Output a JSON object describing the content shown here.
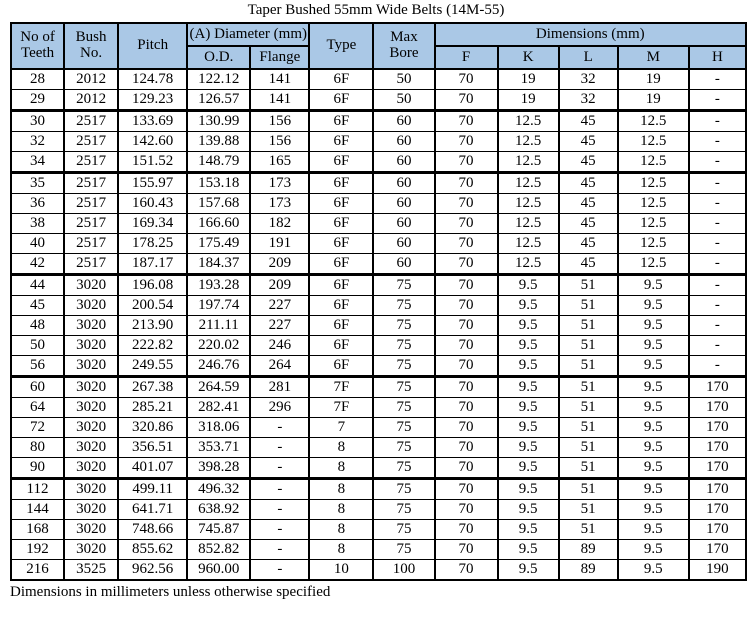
{
  "title": "Taper Bushed 55mm Wide Belts (14M-55)",
  "footer_note": "Dimensions in millimeters unless otherwise specified",
  "colors": {
    "header_bg": "#aac8e6",
    "border": "#000000",
    "text": "#000000"
  },
  "header": {
    "teeth": "No of Teeth",
    "bush": "Bush No.",
    "pitch": "Pitch",
    "diameter_group": "(A) Diameter (mm)",
    "od": "O.D.",
    "flange": "Flange",
    "type": "Type",
    "max_bore": "Max Bore",
    "dimensions_group": "Dimensions (mm)",
    "f": "F",
    "k": "K",
    "l": "L",
    "m": "M",
    "h": "H"
  },
  "columns": [
    "No of Teeth",
    "Bush No.",
    "Pitch",
    "O.D.",
    "Flange",
    "Type",
    "Max Bore",
    "F",
    "K",
    "L",
    "M",
    "H"
  ],
  "rows": [
    [
      "28",
      "2012",
      "124.78",
      "122.12",
      "141",
      "6F",
      "50",
      "70",
      "19",
      "32",
      "19",
      "-"
    ],
    [
      "29",
      "2012",
      "129.23",
      "126.57",
      "141",
      "6F",
      "50",
      "70",
      "19",
      "32",
      "19",
      "-"
    ],
    [
      "30",
      "2517",
      "133.69",
      "130.99",
      "156",
      "6F",
      "60",
      "70",
      "12.5",
      "45",
      "12.5",
      "-"
    ],
    [
      "32",
      "2517",
      "142.60",
      "139.88",
      "156",
      "6F",
      "60",
      "70",
      "12.5",
      "45",
      "12.5",
      "-"
    ],
    [
      "34",
      "2517",
      "151.52",
      "148.79",
      "165",
      "6F",
      "60",
      "70",
      "12.5",
      "45",
      "12.5",
      "-"
    ],
    [
      "35",
      "2517",
      "155.97",
      "153.18",
      "173",
      "6F",
      "60",
      "70",
      "12.5",
      "45",
      "12.5",
      "-"
    ],
    [
      "36",
      "2517",
      "160.43",
      "157.68",
      "173",
      "6F",
      "60",
      "70",
      "12.5",
      "45",
      "12.5",
      "-"
    ],
    [
      "38",
      "2517",
      "169.34",
      "166.60",
      "182",
      "6F",
      "60",
      "70",
      "12.5",
      "45",
      "12.5",
      "-"
    ],
    [
      "40",
      "2517",
      "178.25",
      "175.49",
      "191",
      "6F",
      "60",
      "70",
      "12.5",
      "45",
      "12.5",
      "-"
    ],
    [
      "42",
      "2517",
      "187.17",
      "184.37",
      "209",
      "6F",
      "60",
      "70",
      "12.5",
      "45",
      "12.5",
      "-"
    ],
    [
      "44",
      "3020",
      "196.08",
      "193.28",
      "209",
      "6F",
      "75",
      "70",
      "9.5",
      "51",
      "9.5",
      "-"
    ],
    [
      "45",
      "3020",
      "200.54",
      "197.74",
      "227",
      "6F",
      "75",
      "70",
      "9.5",
      "51",
      "9.5",
      "-"
    ],
    [
      "48",
      "3020",
      "213.90",
      "211.11",
      "227",
      "6F",
      "75",
      "70",
      "9.5",
      "51",
      "9.5",
      "-"
    ],
    [
      "50",
      "3020",
      "222.82",
      "220.02",
      "246",
      "6F",
      "75",
      "70",
      "9.5",
      "51",
      "9.5",
      "-"
    ],
    [
      "56",
      "3020",
      "249.55",
      "246.76",
      "264",
      "6F",
      "75",
      "70",
      "9.5",
      "51",
      "9.5",
      "-"
    ],
    [
      "60",
      "3020",
      "267.38",
      "264.59",
      "281",
      "7F",
      "75",
      "70",
      "9.5",
      "51",
      "9.5",
      "170"
    ],
    [
      "64",
      "3020",
      "285.21",
      "282.41",
      "296",
      "7F",
      "75",
      "70",
      "9.5",
      "51",
      "9.5",
      "170"
    ],
    [
      "72",
      "3020",
      "320.86",
      "318.06",
      "-",
      "7",
      "75",
      "70",
      "9.5",
      "51",
      "9.5",
      "170"
    ],
    [
      "80",
      "3020",
      "356.51",
      "353.71",
      "-",
      "8",
      "75",
      "70",
      "9.5",
      "51",
      "9.5",
      "170"
    ],
    [
      "90",
      "3020",
      "401.07",
      "398.28",
      "-",
      "8",
      "75",
      "70",
      "9.5",
      "51",
      "9.5",
      "170"
    ],
    [
      "112",
      "3020",
      "499.11",
      "496.32",
      "-",
      "8",
      "75",
      "70",
      "9.5",
      "51",
      "9.5",
      "170"
    ],
    [
      "144",
      "3020",
      "641.71",
      "638.92",
      "-",
      "8",
      "75",
      "70",
      "9.5",
      "51",
      "9.5",
      "170"
    ],
    [
      "168",
      "3020",
      "748.66",
      "745.87",
      "-",
      "8",
      "75",
      "70",
      "9.5",
      "51",
      "9.5",
      "170"
    ],
    [
      "192",
      "3020",
      "855.62",
      "852.82",
      "-",
      "8",
      "75",
      "70",
      "9.5",
      "89",
      "9.5",
      "170"
    ],
    [
      "216",
      "3525",
      "962.56",
      "960.00",
      "-",
      "10",
      "100",
      "70",
      "9.5",
      "89",
      "9.5",
      "190"
    ]
  ],
  "group_start_teeth": [
    "30",
    "35",
    "44",
    "60",
    "112"
  ]
}
